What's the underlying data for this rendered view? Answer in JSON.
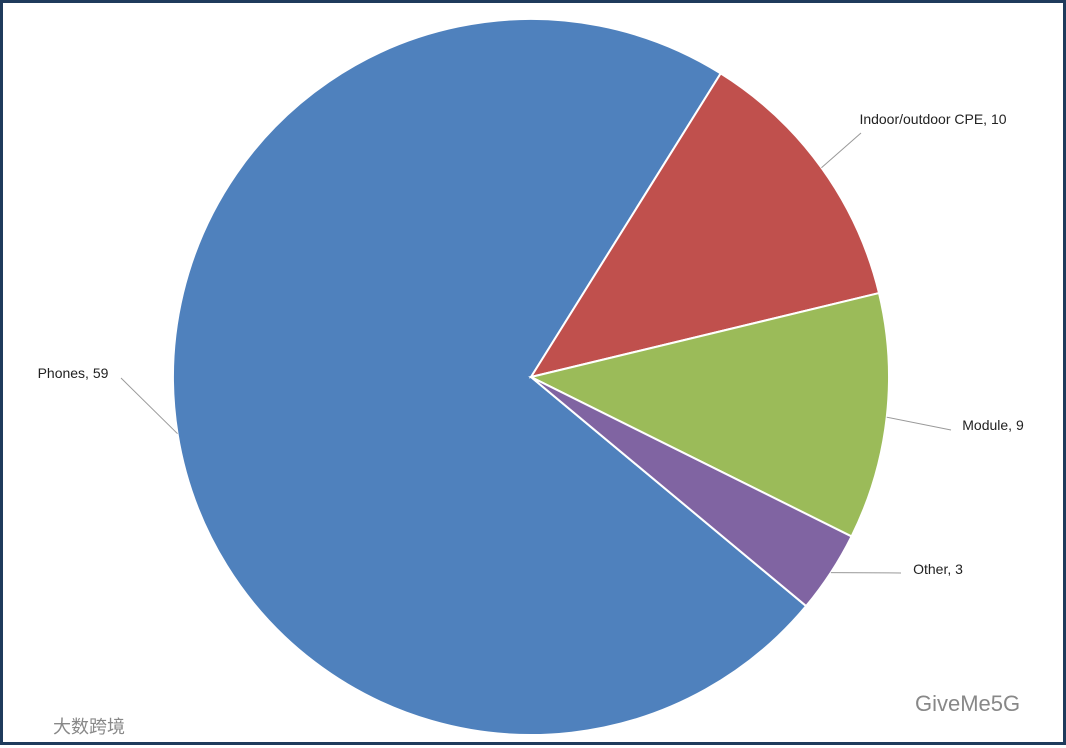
{
  "chart_data": {
    "type": "pie",
    "categories": [
      "Phones",
      "Indoor/outdoor CPE",
      "Module",
      "Other"
    ],
    "values": [
      59,
      10,
      9,
      3
    ],
    "value_labels": [
      "Phones, 59",
      "Indoor/outdoor CPE, 10",
      "Module, 9",
      "Other, 3"
    ],
    "colors": [
      "#4f81bd",
      "#c0504d",
      "#9bbb59",
      "#8064a2"
    ]
  },
  "watermarks": [
    "GiveMe5G",
    "大数跨境"
  ]
}
